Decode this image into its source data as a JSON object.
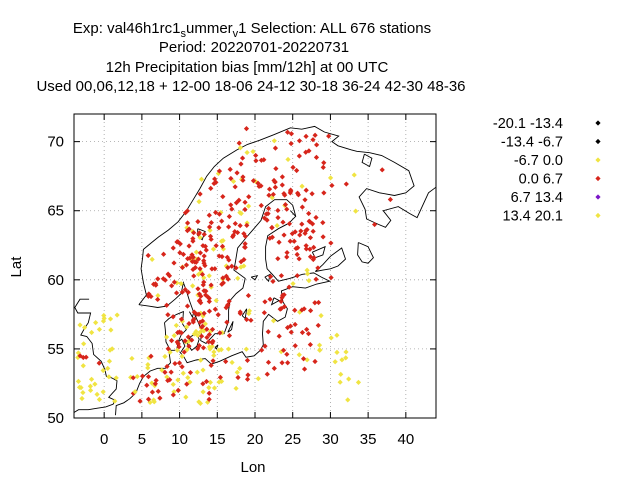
{
  "chart_data": {
    "type": "scatter",
    "title_lines": [
      "Exp: val46h1rc1_summer_v1   Selection: ALL     676 stations",
      "Period: 20220701-20220731",
      "12h Precipitation bias [mm/12h] at  00 UTC",
      "Used  00,06,12,18  + 12-00 18-06 24-12 30-18 36-24 42-30 48-36"
    ],
    "title_rich": {
      "exp_prefix": "Exp: val46h1rc1",
      "exp_sub1": "s",
      "exp_mid": "ummer",
      "exp_sub2": "v",
      "exp_suffix": "1   Selection: ALL     676 stations"
    },
    "xlabel": "Lon",
    "ylabel": "Lat",
    "xlim": [
      -4,
      44
    ],
    "ylim": [
      50,
      72
    ],
    "xticks": [
      0,
      5,
      10,
      15,
      20,
      25,
      30,
      35,
      40
    ],
    "yticks": [
      50,
      55,
      60,
      65,
      70
    ],
    "grid": true,
    "legend_position": "right",
    "series": [
      {
        "name": "-20.1 -13.4",
        "color": "#000000",
        "count": 0,
        "points": []
      },
      {
        "name": "-13.4 -6.7",
        "color": "#000000",
        "count": 0,
        "points": []
      },
      {
        "name": "-6.7 0.0",
        "color": "#f0e442",
        "count": 202,
        "points": []
      },
      {
        "name": "0.0 6.7",
        "color": "#d7251b",
        "count": 470,
        "points": []
      },
      {
        "name": "6.7 13.4",
        "color": "#7b16c8",
        "count": 0,
        "points": []
      },
      {
        "name": "13.4 20.1",
        "color": "#f0e442",
        "count": 4,
        "points": []
      }
    ]
  }
}
